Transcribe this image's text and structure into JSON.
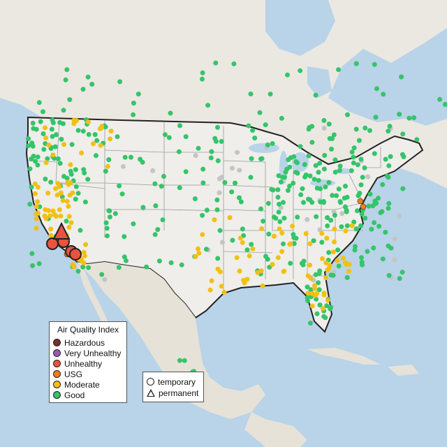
{
  "colors": {
    "ocean": "#b9d3e8",
    "land_us": "#efeeea",
    "land_other": "#e6e2d8",
    "land_north": "#ebe8e2",
    "border": "#222222",
    "state_lines": "#9a9a9a",
    "Good": "#35c46a",
    "Moderate": "#f2c014",
    "USG": "#f07f1a",
    "Unhealthy": "#e8543d",
    "Very Unhealthy": "#9b59b6",
    "Hazardous": "#7a2e2e",
    "inactive": "#c4c4c4"
  },
  "legend": {
    "title": "Air Quality Index",
    "items": [
      {
        "label": "Hazardous",
        "color": "#7a2e2e"
      },
      {
        "label": "Very Unhealthy",
        "color": "#9b59b6"
      },
      {
        "label": "Unhealthy",
        "color": "#e8543d"
      },
      {
        "label": "USG",
        "color": "#f07f1a"
      },
      {
        "label": "Moderate",
        "color": "#f2c014"
      },
      {
        "label": "Good",
        "color": "#35c46a"
      }
    ]
  },
  "type_legend": {
    "temporary": "temporary",
    "permanent": "permanent"
  }
}
